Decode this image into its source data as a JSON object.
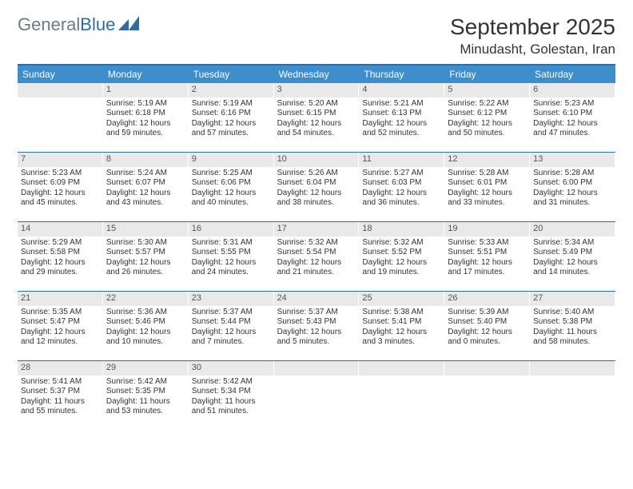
{
  "logo": {
    "text1": "General",
    "text2": "Blue"
  },
  "title": "September 2025",
  "location": "Minudasht, Golestan, Iran",
  "colors": {
    "header_bg": "#3d8ecb",
    "rule": "#2e6ca4",
    "daynum_bg": "#e9e9e9",
    "logo_gray": "#6f7a84",
    "logo_blue": "#2e6ca4"
  },
  "day_headers": [
    "Sunday",
    "Monday",
    "Tuesday",
    "Wednesday",
    "Thursday",
    "Friday",
    "Saturday"
  ],
  "weeks": [
    [
      null,
      {
        "n": "1",
        "sr": "5:19 AM",
        "ss": "6:18 PM",
        "dl": "12 hours and 59 minutes."
      },
      {
        "n": "2",
        "sr": "5:19 AM",
        "ss": "6:16 PM",
        "dl": "12 hours and 57 minutes."
      },
      {
        "n": "3",
        "sr": "5:20 AM",
        "ss": "6:15 PM",
        "dl": "12 hours and 54 minutes."
      },
      {
        "n": "4",
        "sr": "5:21 AM",
        "ss": "6:13 PM",
        "dl": "12 hours and 52 minutes."
      },
      {
        "n": "5",
        "sr": "5:22 AM",
        "ss": "6:12 PM",
        "dl": "12 hours and 50 minutes."
      },
      {
        "n": "6",
        "sr": "5:23 AM",
        "ss": "6:10 PM",
        "dl": "12 hours and 47 minutes."
      }
    ],
    [
      {
        "n": "7",
        "sr": "5:23 AM",
        "ss": "6:09 PM",
        "dl": "12 hours and 45 minutes."
      },
      {
        "n": "8",
        "sr": "5:24 AM",
        "ss": "6:07 PM",
        "dl": "12 hours and 43 minutes."
      },
      {
        "n": "9",
        "sr": "5:25 AM",
        "ss": "6:06 PM",
        "dl": "12 hours and 40 minutes."
      },
      {
        "n": "10",
        "sr": "5:26 AM",
        "ss": "6:04 PM",
        "dl": "12 hours and 38 minutes."
      },
      {
        "n": "11",
        "sr": "5:27 AM",
        "ss": "6:03 PM",
        "dl": "12 hours and 36 minutes."
      },
      {
        "n": "12",
        "sr": "5:28 AM",
        "ss": "6:01 PM",
        "dl": "12 hours and 33 minutes."
      },
      {
        "n": "13",
        "sr": "5:28 AM",
        "ss": "6:00 PM",
        "dl": "12 hours and 31 minutes."
      }
    ],
    [
      {
        "n": "14",
        "sr": "5:29 AM",
        "ss": "5:58 PM",
        "dl": "12 hours and 29 minutes."
      },
      {
        "n": "15",
        "sr": "5:30 AM",
        "ss": "5:57 PM",
        "dl": "12 hours and 26 minutes."
      },
      {
        "n": "16",
        "sr": "5:31 AM",
        "ss": "5:55 PM",
        "dl": "12 hours and 24 minutes."
      },
      {
        "n": "17",
        "sr": "5:32 AM",
        "ss": "5:54 PM",
        "dl": "12 hours and 21 minutes."
      },
      {
        "n": "18",
        "sr": "5:32 AM",
        "ss": "5:52 PM",
        "dl": "12 hours and 19 minutes."
      },
      {
        "n": "19",
        "sr": "5:33 AM",
        "ss": "5:51 PM",
        "dl": "12 hours and 17 minutes."
      },
      {
        "n": "20",
        "sr": "5:34 AM",
        "ss": "5:49 PM",
        "dl": "12 hours and 14 minutes."
      }
    ],
    [
      {
        "n": "21",
        "sr": "5:35 AM",
        "ss": "5:47 PM",
        "dl": "12 hours and 12 minutes."
      },
      {
        "n": "22",
        "sr": "5:36 AM",
        "ss": "5:46 PM",
        "dl": "12 hours and 10 minutes."
      },
      {
        "n": "23",
        "sr": "5:37 AM",
        "ss": "5:44 PM",
        "dl": "12 hours and 7 minutes."
      },
      {
        "n": "24",
        "sr": "5:37 AM",
        "ss": "5:43 PM",
        "dl": "12 hours and 5 minutes."
      },
      {
        "n": "25",
        "sr": "5:38 AM",
        "ss": "5:41 PM",
        "dl": "12 hours and 3 minutes."
      },
      {
        "n": "26",
        "sr": "5:39 AM",
        "ss": "5:40 PM",
        "dl": "12 hours and 0 minutes."
      },
      {
        "n": "27",
        "sr": "5:40 AM",
        "ss": "5:38 PM",
        "dl": "11 hours and 58 minutes."
      }
    ],
    [
      {
        "n": "28",
        "sr": "5:41 AM",
        "ss": "5:37 PM",
        "dl": "11 hours and 55 minutes."
      },
      {
        "n": "29",
        "sr": "5:42 AM",
        "ss": "5:35 PM",
        "dl": "11 hours and 53 minutes."
      },
      {
        "n": "30",
        "sr": "5:42 AM",
        "ss": "5:34 PM",
        "dl": "11 hours and 51 minutes."
      },
      null,
      null,
      null,
      null
    ]
  ],
  "labels": {
    "sunrise": "Sunrise:",
    "sunset": "Sunset:",
    "daylight": "Daylight:"
  }
}
